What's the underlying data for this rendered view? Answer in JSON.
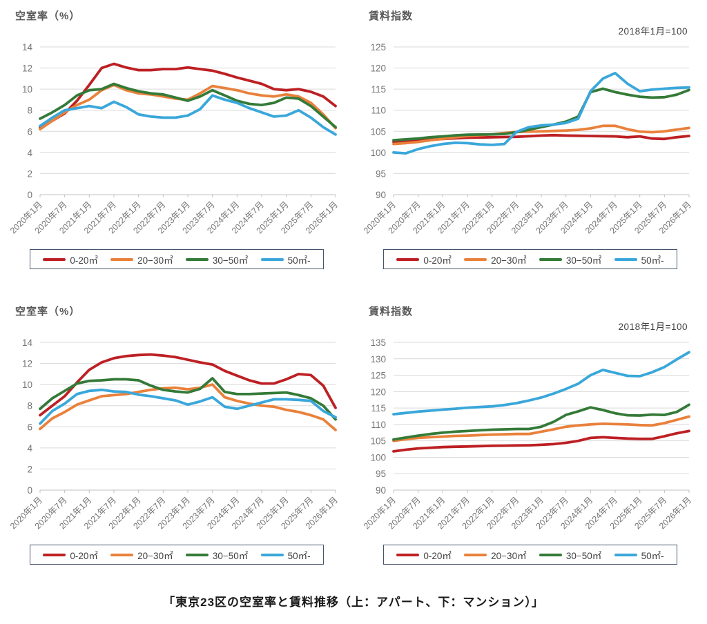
{
  "page": {
    "caption": "「東京23区の空室率と賃料推移（上：アパート、下：マンション）」"
  },
  "colors": {
    "red": "#bd2024",
    "orange": "#e9813b",
    "green": "#347a38",
    "blue": "#3aa7da",
    "gridline": "#d9d9d9",
    "axis_line": "#c0c0c0",
    "tick_text": "#757575",
    "title_text": "#595959",
    "legend_border": "#44546a"
  },
  "legend": {
    "items": [
      {
        "label": "0-20㎡",
        "color": "#bd2024"
      },
      {
        "label": "20−30㎡",
        "color": "#e9813b"
      },
      {
        "label": "30−50㎡",
        "color": "#347a38"
      },
      {
        "label": "50㎡-",
        "color": "#3aa7da"
      }
    ]
  },
  "chart_data": [
    {
      "type": "line",
      "title": "空室率（%）",
      "subtitle": "",
      "ylabel": "空室率（%）",
      "ylim": [
        0,
        14
      ],
      "y_step": 2,
      "grid": true,
      "legend_position": "bottom",
      "x_tick_labels": [
        "2020年1月",
        "2020年7月",
        "2021年1月",
        "2021年7月",
        "2022年1月",
        "2022年7月",
        "2023年1月",
        "2023年7月",
        "2024年1月",
        "2024年7月",
        "2025年1月",
        "2025年7月",
        "2026年1月"
      ],
      "x": [
        "2020-01",
        "2020-04",
        "2020-07",
        "2020-10",
        "2021-01",
        "2021-04",
        "2021-07",
        "2021-10",
        "2022-01",
        "2022-04",
        "2022-07",
        "2022-10",
        "2023-01",
        "2023-04",
        "2023-07",
        "2023-10",
        "2024-01",
        "2024-04",
        "2024-07",
        "2024-10",
        "2025-01",
        "2025-04",
        "2025-07",
        "2025-10",
        "2026-01"
      ],
      "series": [
        {
          "key": "0-20",
          "name": "0-20㎡",
          "color": "#bd2024",
          "values": [
            6.4,
            7.0,
            7.7,
            8.9,
            10.4,
            12.0,
            12.4,
            12.05,
            11.8,
            11.8,
            11.9,
            11.9,
            12.05,
            11.9,
            11.75,
            11.45,
            11.1,
            10.8,
            10.5,
            10.0,
            9.9,
            10.0,
            9.75,
            9.3,
            8.4
          ]
        },
        {
          "key": "20-30",
          "name": "20−30㎡",
          "color": "#e9813b",
          "values": [
            6.2,
            7.0,
            7.8,
            8.5,
            9.0,
            9.9,
            10.4,
            9.9,
            9.6,
            9.5,
            9.3,
            9.1,
            9.0,
            9.6,
            10.3,
            10.1,
            9.9,
            9.6,
            9.4,
            9.3,
            9.5,
            9.3,
            8.7,
            7.6,
            6.3
          ]
        },
        {
          "key": "30-50",
          "name": "30−50㎡",
          "color": "#347a38",
          "values": [
            7.2,
            7.8,
            8.5,
            9.4,
            9.9,
            10.0,
            10.5,
            10.1,
            9.8,
            9.6,
            9.5,
            9.2,
            8.9,
            9.3,
            9.9,
            9.4,
            8.9,
            8.6,
            8.5,
            8.7,
            9.2,
            9.1,
            8.4,
            7.4,
            6.4
          ]
        },
        {
          "key": "50plus",
          "name": "50㎡-",
          "color": "#3aa7da",
          "values": [
            6.5,
            7.3,
            8.0,
            8.2,
            8.4,
            8.2,
            8.8,
            8.3,
            7.6,
            7.4,
            7.3,
            7.3,
            7.5,
            8.1,
            9.4,
            9.0,
            8.7,
            8.2,
            7.8,
            7.4,
            7.5,
            8.0,
            7.3,
            6.4,
            5.7
          ]
        }
      ]
    },
    {
      "type": "line",
      "title": "賃料指数",
      "subtitle": "2018年1月=100",
      "ylabel": "賃料指数",
      "ylim": [
        90,
        125
      ],
      "y_step": 5,
      "grid": true,
      "legend_position": "bottom",
      "x_tick_labels": [
        "2020年1月",
        "2020年7月",
        "2021年1月",
        "2021年7月",
        "2022年1月",
        "2022年7月",
        "2023年1月",
        "2023年7月",
        "2024年1月",
        "2024年7月",
        "2025年1月",
        "2025年7月",
        "2026年1月"
      ],
      "x": [
        "2020-01",
        "2020-04",
        "2020-07",
        "2020-10",
        "2021-01",
        "2021-04",
        "2021-07",
        "2021-10",
        "2022-01",
        "2022-04",
        "2022-07",
        "2022-10",
        "2023-01",
        "2023-04",
        "2023-07",
        "2023-10",
        "2024-01",
        "2024-04",
        "2024-07",
        "2024-10",
        "2025-01",
        "2025-04",
        "2025-07",
        "2025-10",
        "2026-01"
      ],
      "series": [
        {
          "key": "0-20",
          "name": "0-20㎡",
          "color": "#bd2024",
          "values": [
            102.5,
            102.6,
            102.8,
            103.0,
            103.2,
            103.35,
            103.5,
            103.55,
            103.6,
            103.65,
            103.7,
            103.85,
            104.0,
            104.1,
            104.0,
            103.95,
            103.9,
            103.85,
            103.8,
            103.6,
            103.8,
            103.3,
            103.2,
            103.6,
            103.9
          ]
        },
        {
          "key": "20-30",
          "name": "20−30㎡",
          "color": "#e9813b",
          "values": [
            102.0,
            102.2,
            102.5,
            102.9,
            103.2,
            103.6,
            103.9,
            104.1,
            104.3,
            104.6,
            104.85,
            104.95,
            105.0,
            105.1,
            105.2,
            105.35,
            105.7,
            106.3,
            106.3,
            105.5,
            104.95,
            104.8,
            105.0,
            105.4,
            105.8
          ]
        },
        {
          "key": "30-50",
          "name": "30−50㎡",
          "color": "#347a38",
          "values": [
            102.9,
            103.1,
            103.3,
            103.6,
            103.8,
            104.05,
            104.2,
            104.25,
            104.3,
            104.4,
            104.8,
            105.4,
            106.0,
            106.6,
            107.3,
            108.5,
            114.3,
            115.1,
            114.3,
            113.7,
            113.2,
            113.0,
            113.1,
            113.7,
            114.8
          ]
        },
        {
          "key": "50plus",
          "name": "50㎡-",
          "color": "#3aa7da",
          "values": [
            100.0,
            99.8,
            100.8,
            101.5,
            102.0,
            102.3,
            102.2,
            101.9,
            101.8,
            102.0,
            104.9,
            106.0,
            106.4,
            106.6,
            107.0,
            108.0,
            114.5,
            117.5,
            118.8,
            116.3,
            114.5,
            114.9,
            115.1,
            115.3,
            115.4
          ]
        }
      ]
    },
    {
      "type": "line",
      "title": "空室率（%）",
      "subtitle": "",
      "ylabel": "空室率（%）",
      "ylim": [
        0,
        14
      ],
      "y_step": 2,
      "grid": true,
      "legend_position": "bottom",
      "x_tick_labels": [
        "2020年1月",
        "2020年7月",
        "2021年1月",
        "2021年7月",
        "2022年1月",
        "2022年7月",
        "2023年1月",
        "2023年7月",
        "2024年1月",
        "2024年7月",
        "2025年1月",
        "2025年7月",
        "2026年1月"
      ],
      "x": [
        "2020-01",
        "2020-04",
        "2020-07",
        "2020-10",
        "2021-01",
        "2021-04",
        "2021-07",
        "2021-10",
        "2022-01",
        "2022-04",
        "2022-07",
        "2022-10",
        "2023-01",
        "2023-04",
        "2023-07",
        "2023-10",
        "2024-01",
        "2024-04",
        "2024-07",
        "2024-10",
        "2025-01",
        "2025-04",
        "2025-07",
        "2025-10",
        "2026-01"
      ],
      "series": [
        {
          "key": "0-20",
          "name": "0-20㎡",
          "color": "#bd2024",
          "values": [
            7.1,
            8.0,
            8.9,
            10.2,
            11.4,
            12.1,
            12.5,
            12.7,
            12.8,
            12.85,
            12.75,
            12.6,
            12.35,
            12.1,
            11.9,
            11.3,
            10.85,
            10.4,
            10.1,
            10.1,
            10.5,
            11.0,
            10.9,
            9.9,
            7.8
          ]
        },
        {
          "key": "20-30",
          "name": "20−30㎡",
          "color": "#e9813b",
          "values": [
            5.8,
            6.8,
            7.4,
            8.1,
            8.5,
            8.9,
            9.0,
            9.1,
            9.3,
            9.5,
            9.65,
            9.7,
            9.55,
            9.7,
            10.0,
            8.8,
            8.45,
            8.2,
            8.0,
            7.9,
            7.6,
            7.4,
            7.1,
            6.7,
            5.7
          ]
        },
        {
          "key": "30-50",
          "name": "30−50㎡",
          "color": "#347a38",
          "values": [
            7.7,
            8.7,
            9.4,
            10.1,
            10.35,
            10.4,
            10.5,
            10.5,
            10.4,
            9.9,
            9.5,
            9.35,
            9.25,
            9.6,
            10.6,
            9.3,
            9.1,
            9.1,
            9.15,
            9.2,
            9.25,
            9.0,
            8.7,
            8.0,
            6.7
          ]
        },
        {
          "key": "50plus",
          "name": "50㎡-",
          "color": "#3aa7da",
          "values": [
            6.3,
            7.5,
            8.2,
            9.1,
            9.4,
            9.5,
            9.35,
            9.3,
            9.05,
            8.9,
            8.7,
            8.5,
            8.1,
            8.4,
            8.8,
            7.9,
            7.7,
            8.0,
            8.3,
            8.6,
            8.6,
            8.55,
            8.45,
            7.5,
            6.9
          ]
        }
      ]
    },
    {
      "type": "line",
      "title": "賃料指数",
      "subtitle": "2018年1月=100",
      "ylabel": "賃料指数",
      "ylim": [
        90,
        135
      ],
      "y_step": 5,
      "grid": true,
      "legend_position": "bottom",
      "x_tick_labels": [
        "2020年1月",
        "2020年7月",
        "2021年1月",
        "2021年7月",
        "2022年1月",
        "2022年7月",
        "2023年1月",
        "2023年7月",
        "2024年1月",
        "2024年7月",
        "2025年1月",
        "2025年7月",
        "2026年1月"
      ],
      "x": [
        "2020-01",
        "2020-04",
        "2020-07",
        "2020-10",
        "2021-01",
        "2021-04",
        "2021-07",
        "2021-10",
        "2022-01",
        "2022-04",
        "2022-07",
        "2022-10",
        "2023-01",
        "2023-04",
        "2023-07",
        "2023-10",
        "2024-01",
        "2024-04",
        "2024-07",
        "2024-10",
        "2025-01",
        "2025-04",
        "2025-07",
        "2025-10",
        "2026-01"
      ],
      "series": [
        {
          "key": "0-20",
          "name": "0-20㎡",
          "color": "#bd2024",
          "values": [
            101.8,
            102.3,
            102.7,
            102.9,
            103.1,
            103.2,
            103.3,
            103.4,
            103.5,
            103.55,
            103.6,
            103.65,
            103.8,
            104.0,
            104.4,
            105.0,
            105.9,
            106.1,
            105.9,
            105.7,
            105.6,
            105.6,
            106.4,
            107.3,
            108.0
          ]
        },
        {
          "key": "20-30",
          "name": "20−30㎡",
          "color": "#e9813b",
          "values": [
            105.0,
            105.5,
            105.9,
            106.1,
            106.3,
            106.5,
            106.6,
            106.75,
            106.9,
            107.0,
            107.1,
            107.1,
            107.8,
            108.5,
            109.3,
            109.7,
            110.0,
            110.2,
            110.1,
            110.0,
            109.8,
            109.7,
            110.4,
            111.4,
            112.4
          ]
        },
        {
          "key": "30-50",
          "name": "30−50㎡",
          "color": "#347a38",
          "values": [
            105.4,
            106.0,
            106.6,
            107.1,
            107.5,
            107.8,
            108.0,
            108.2,
            108.4,
            108.5,
            108.6,
            108.6,
            109.3,
            110.8,
            112.9,
            114.0,
            115.2,
            114.4,
            113.4,
            112.8,
            112.7,
            113.0,
            112.9,
            113.8,
            116.0
          ]
        },
        {
          "key": "50plus",
          "name": "50㎡-",
          "color": "#3aa7da",
          "values": [
            113.1,
            113.5,
            113.9,
            114.2,
            114.5,
            114.8,
            115.1,
            115.3,
            115.5,
            115.9,
            116.5,
            117.3,
            118.2,
            119.4,
            120.8,
            122.4,
            125.0,
            126.6,
            125.7,
            124.8,
            124.7,
            125.9,
            127.5,
            129.8,
            132.0
          ]
        }
      ]
    }
  ]
}
